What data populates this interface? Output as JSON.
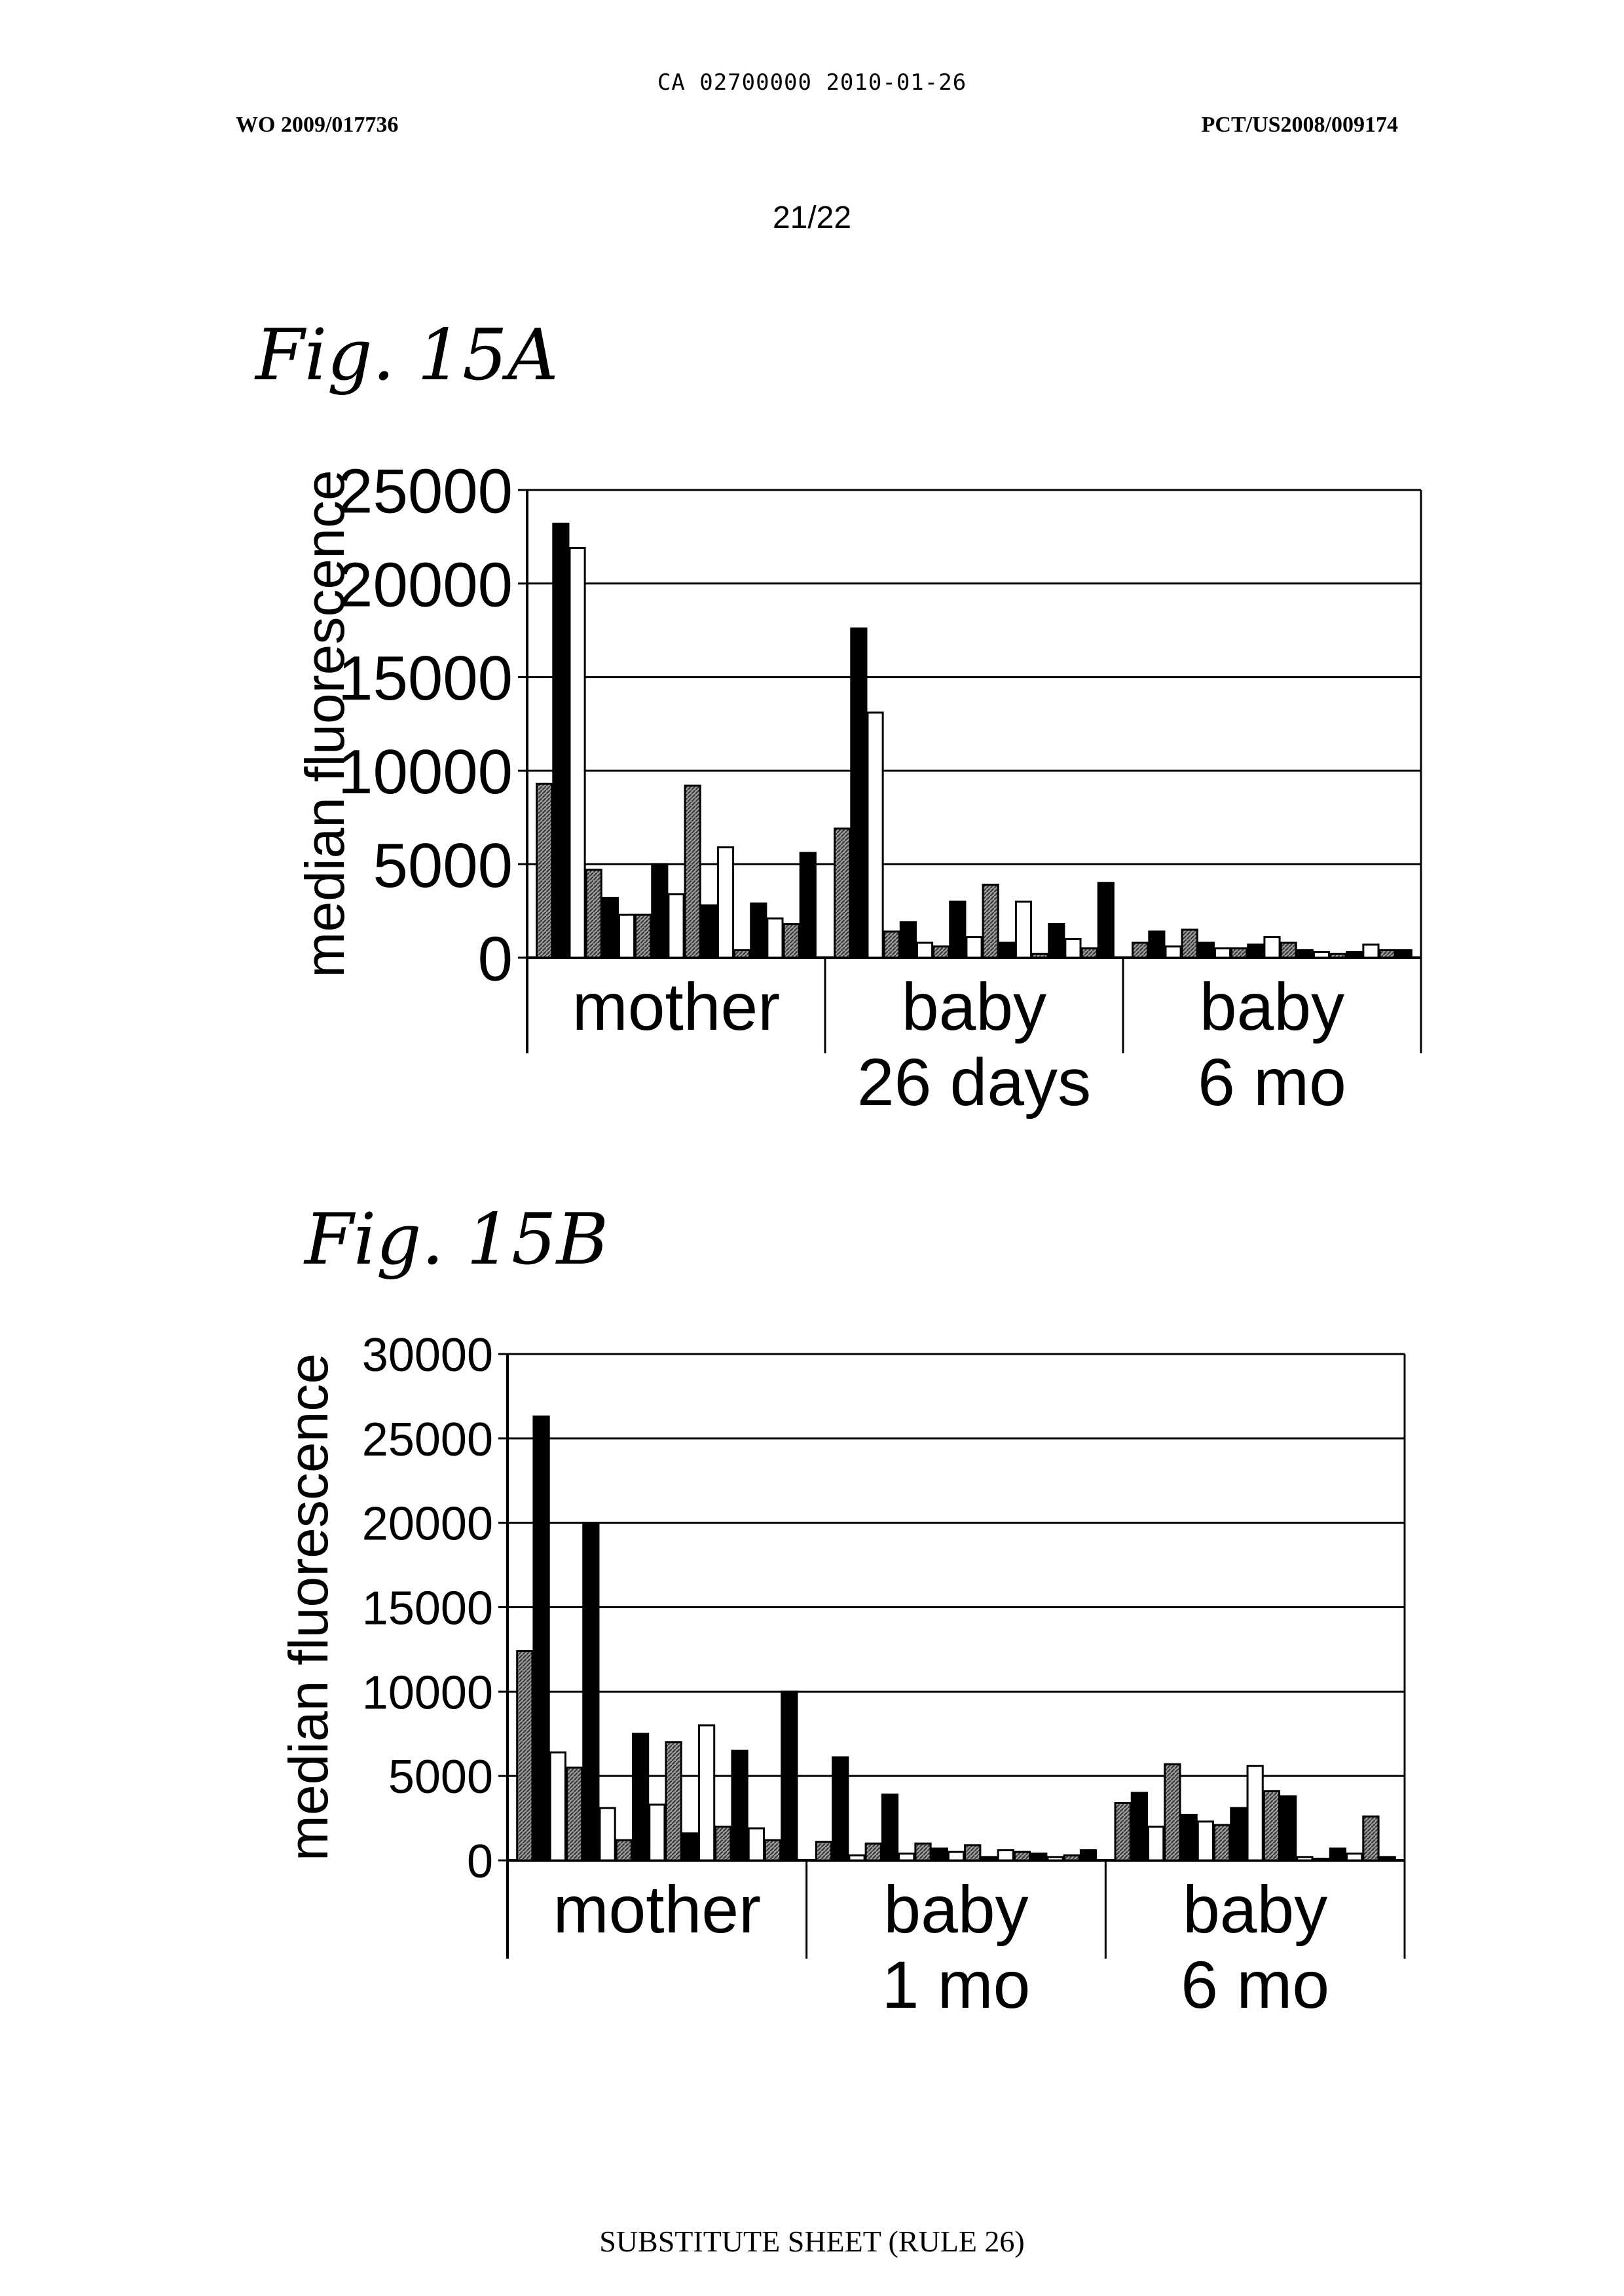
{
  "header": {
    "top_line": "CA 02700000 2010-01-26",
    "left": "WO 2009/017736",
    "right": "PCT/US2008/009174",
    "page": "21/22"
  },
  "figures": [
    {
      "title": "Fig. 15A"
    },
    {
      "title": "Fig. 15B"
    }
  ],
  "footer": "SUBSTITUTE SHEET (RULE 26)",
  "chart_data": [
    {
      "type": "bar",
      "ylabel": "median fluorescence",
      "ylim": [
        0,
        25000
      ],
      "yticks": [
        0,
        5000,
        10000,
        15000,
        20000,
        25000
      ],
      "grid": true,
      "groups": [
        {
          "label": [
            "mother"
          ],
          "values": [
            9300,
            23200,
            21900,
            4700,
            3200,
            2300,
            2300,
            5000,
            3400,
            9200,
            2800,
            5900,
            400,
            2900,
            2100,
            1800,
            5600
          ]
        },
        {
          "label": [
            "baby",
            "26 days"
          ],
          "values": [
            6900,
            17600,
            13100,
            1400,
            1900,
            800,
            600,
            3000,
            1100,
            3900,
            800,
            3000,
            200,
            1800,
            1000,
            500,
            4000
          ]
        },
        {
          "label": [
            "baby",
            "6 mo"
          ],
          "values": [
            800,
            1400,
            600,
            1500,
            800,
            500,
            500,
            700,
            1100,
            800,
            400,
            300,
            200,
            300,
            700,
            400,
            400
          ]
        }
      ]
    },
    {
      "type": "bar",
      "ylabel": "median fluorescence",
      "ylim": [
        0,
        30000
      ],
      "yticks": [
        0,
        5000,
        10000,
        15000,
        20000,
        25000,
        30000
      ],
      "grid": true,
      "groups": [
        {
          "label": [
            "mother"
          ],
          "values": [
            12400,
            26300,
            6400,
            5500,
            20000,
            3100,
            1200,
            7500,
            3300,
            7000,
            1600,
            8000,
            2000,
            6500,
            1900,
            1200,
            10000
          ]
        },
        {
          "label": [
            "baby",
            "1 mo"
          ],
          "values": [
            1100,
            6100,
            300,
            1000,
            3900,
            400,
            1000,
            700,
            500,
            900,
            200,
            600,
            500,
            400,
            200,
            300,
            600
          ]
        },
        {
          "label": [
            "baby",
            "6 mo"
          ],
          "values": [
            3400,
            4000,
            2000,
            5700,
            2700,
            2300,
            2100,
            3100,
            5600,
            4100,
            3800,
            200,
            100,
            700,
            400,
            2600,
            200
          ]
        }
      ]
    }
  ]
}
